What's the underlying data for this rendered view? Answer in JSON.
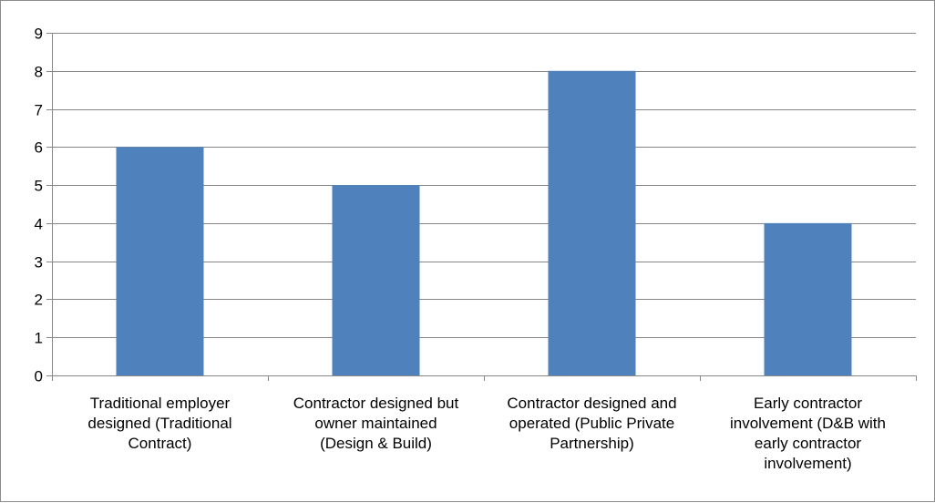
{
  "chart_data": {
    "type": "bar",
    "categories": [
      [
        "Traditional employer",
        "designed (Traditional",
        "Contract)"
      ],
      [
        "Contractor designed but",
        "owner maintained",
        "(Design & Build)"
      ],
      [
        "Contractor designed and",
        "operated (Public Private",
        "Partnership)"
      ],
      [
        "Early contractor",
        "involvement (D&B with",
        "early contractor",
        "involvement)"
      ]
    ],
    "values": [
      6,
      5,
      8,
      4
    ],
    "yticks": [
      0,
      1,
      2,
      3,
      4,
      5,
      6,
      7,
      8,
      9
    ],
    "ylim": [
      0,
      9
    ],
    "title": "",
    "xlabel": "",
    "ylabel": "",
    "grid": true,
    "legend": "none",
    "colors": {
      "bar": "#4f81bd",
      "gridline": "#868686",
      "axis": "#868686",
      "frame": "#8c8c8c"
    }
  }
}
